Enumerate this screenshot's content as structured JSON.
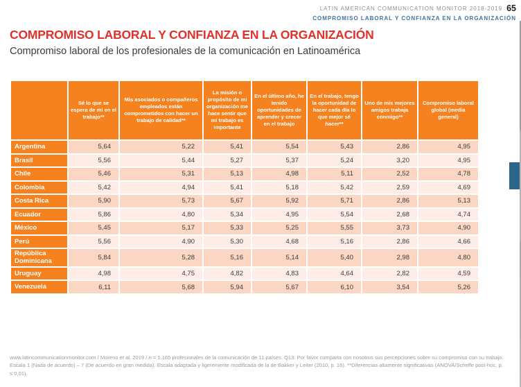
{
  "colors": {
    "orange": "#f5821f",
    "row_dark": "#fad6c3",
    "row_light": "#fdede6",
    "title_red": "#e2312a",
    "header_blue": "#3d74a3",
    "tab_blue": "#2d6489"
  },
  "page_header": {
    "monitor": "LATIN AMERICAN COMMUNICATION MONITOR 2018-2019",
    "page_number": "65",
    "section": "COMPROMISO LABORAL Y CONFIANZA EN LA ORGANIZACIÓN"
  },
  "main": {
    "title": "COMPROMISO LABORAL Y CONFIANZA EN LA ORGANIZACIÓN",
    "subtitle": "Compromiso laboral de los profesionales de la comunicación en Latinoamérica"
  },
  "table": {
    "columns": [
      "",
      "Sé lo que se espera de mí en el trabajo**",
      "Mis asociados o compañeros empleados están comprometidos con hacer un trabajo de calidad**",
      "La misión o propósito de mi organización me hace sentir que mi trabajo es importante",
      "En el último año, he tenido oportunidades de aprender y crecer en el trabajo",
      "En el trabajo, tengo la oportunidad de hacer cada día lo que mejor sé hacer**",
      "Uno de mis mejores amigos trabaja conmigo**",
      "Compromiso laboral global (media general)"
    ],
    "rows": [
      {
        "country": "Argentina",
        "values": [
          "5,64",
          "5,22",
          "5,41",
          "5,54",
          "5,43",
          "2,86",
          "4,95"
        ]
      },
      {
        "country": "Brasil",
        "values": [
          "5,56",
          "5,44",
          "5,27",
          "5,37",
          "5,24",
          "3,20",
          "4,95"
        ]
      },
      {
        "country": "Chile",
        "values": [
          "5,46",
          "5,31",
          "5,13",
          "4,98",
          "5,11",
          "2,52",
          "4,78"
        ]
      },
      {
        "country": "Colombia",
        "values": [
          "5,42",
          "4,94",
          "5,41",
          "5,18",
          "5,42",
          "2,59",
          "4,69"
        ]
      },
      {
        "country": "Costa Rica",
        "values": [
          "5,90",
          "5,73",
          "5,67",
          "5,92",
          "5,71",
          "2,86",
          "5,13"
        ]
      },
      {
        "country": "Ecuador",
        "values": [
          "5,86",
          "4,80",
          "5,34",
          "4,95",
          "5,54",
          "2,68",
          "4,74"
        ]
      },
      {
        "country": "México",
        "values": [
          "5,45",
          "5,17",
          "5,33",
          "5,25",
          "5,55",
          "3,73",
          "4,90"
        ]
      },
      {
        "country": "Perú",
        "values": [
          "5,56",
          "4,90",
          "5,30",
          "4,68",
          "5,16",
          "2,86",
          "4,66"
        ]
      },
      {
        "country": "República Dominicana",
        "values": [
          "5,84",
          "5,28",
          "5,16",
          "5,14",
          "5,40",
          "2,98",
          "4,80"
        ]
      },
      {
        "country": "Uruguay",
        "values": [
          "4,98",
          "4,75",
          "4,82",
          "4,83",
          "4,64",
          "2,82",
          "4,59"
        ]
      },
      {
        "country": "Venezuela",
        "values": [
          "6,11",
          "5,68",
          "5,94",
          "5,67",
          "6,10",
          "3,54",
          "5,26"
        ]
      }
    ]
  },
  "footnote": "www.latincommunicationmonitor.com / Moreno et al. 2019 / n = 1.165 profesionales de la comunicación de 11 países. Q13: Por favor comparta con nosotros sus percepciones sobre su compromiso con su trabajo. Escala 1 (Nada de acuerdo) – 7 (De acuerdo en gran medida). Escala adaptada y ligeremente modificada de la de Bakker y Leiter (2010, p. 16). **Diferencias altamente significativas (ANOVA/Scheffe post-hoc, p. ≤ 0,01)."
}
